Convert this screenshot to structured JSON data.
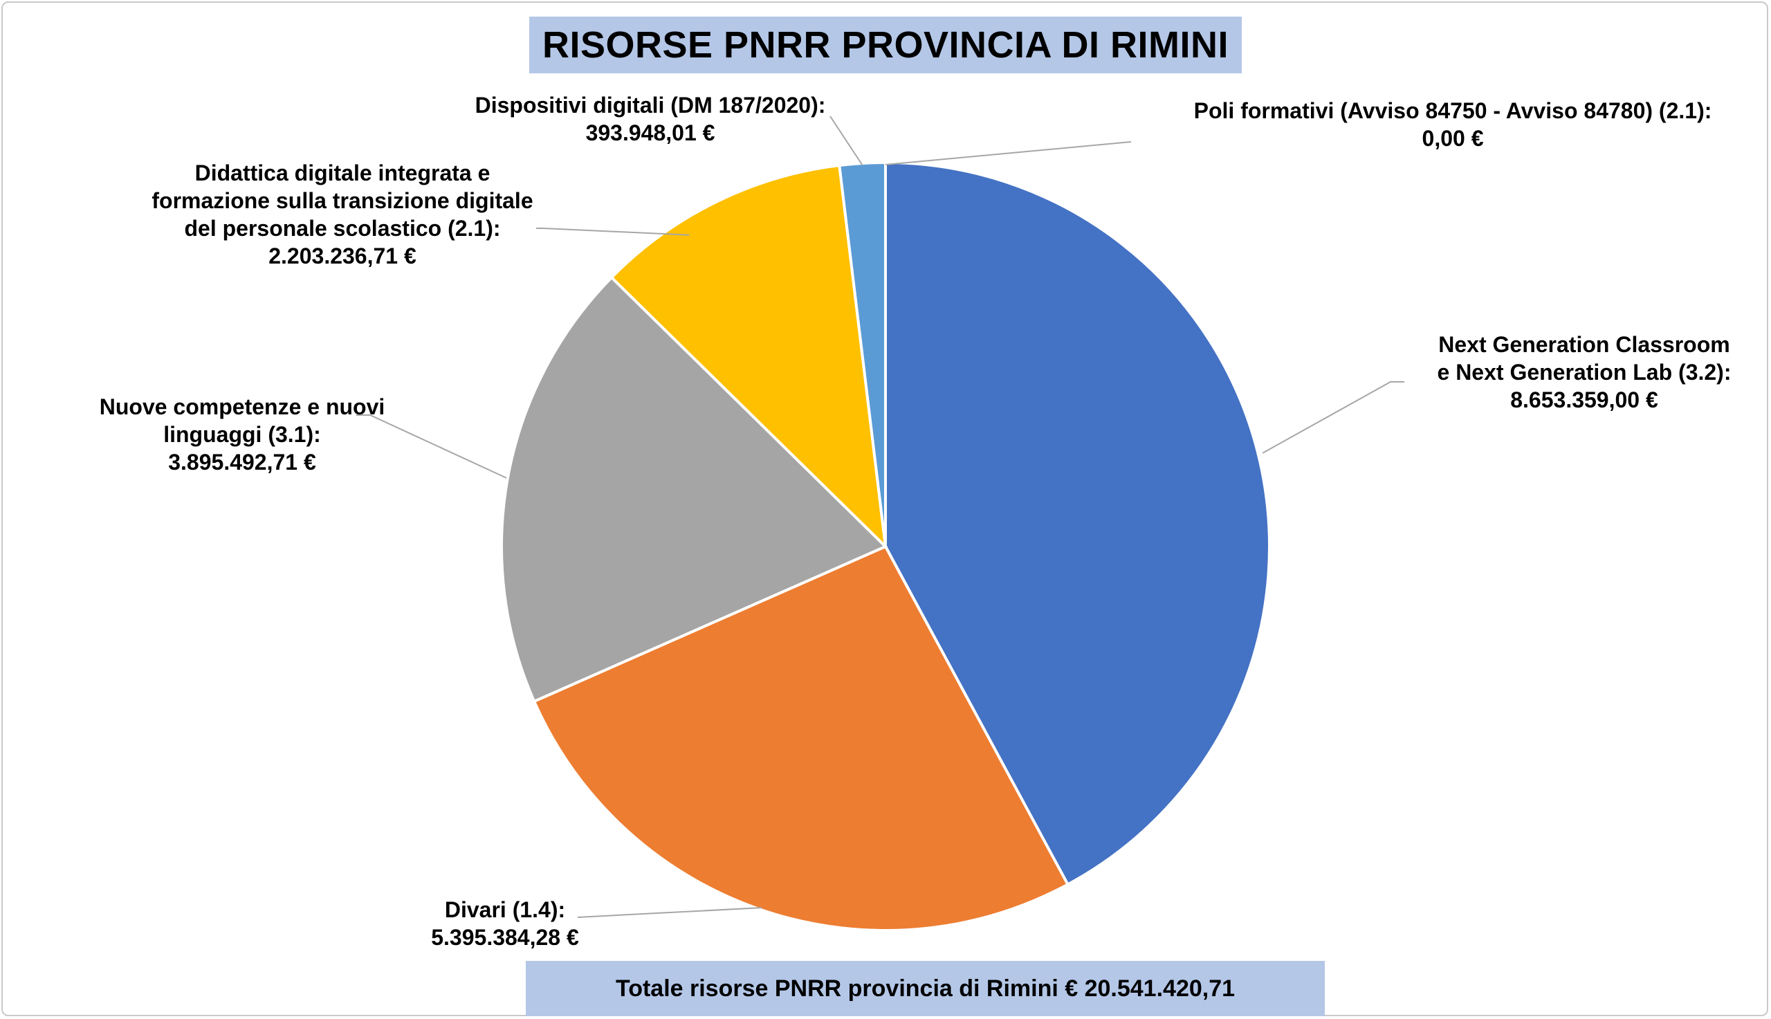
{
  "chart_data": {
    "type": "pie",
    "title": "RISORSE PNRR PROVINCIA DI RIMINI",
    "slices": [
      {
        "lines": [
          "Poli formativi (Avviso 84750 - Avviso 84780) (2.1):"
        ],
        "value_label": "0,00 €",
        "value": 0.0,
        "color": "#4472c4"
      },
      {
        "lines": [
          "Next Generation Classroom",
          "e Next Generation Lab (3.2):"
        ],
        "value_label": "8.653.359,00 €",
        "value": 8653359.0,
        "color": "#4472c4"
      },
      {
        "lines": [
          "Divari (1.4):"
        ],
        "value_label": "5.395.384,28 €",
        "value": 5395384.28,
        "color": "#ed7d31"
      },
      {
        "lines": [
          "Nuove competenze e nuovi",
          "linguaggi (3.1):"
        ],
        "value_label": "3.895.492,71 €",
        "value": 3895492.71,
        "color": "#a5a5a5"
      },
      {
        "lines": [
          "Didattica digitale integrata e",
          "formazione sulla transizione digitale",
          "del personale scolastico (2.1):"
        ],
        "value_label": "2.203.236,71 €",
        "value": 2203236.71,
        "color": "#ffc000"
      },
      {
        "lines": [
          "Dispositivi digitali (DM 187/2020):"
        ],
        "value_label": "393.948,01 €",
        "value": 393948.01,
        "color": "#5b9bd5"
      }
    ],
    "total_text": "Totale risorse PNRR provincia di Rimini € 20.541.420,71"
  }
}
